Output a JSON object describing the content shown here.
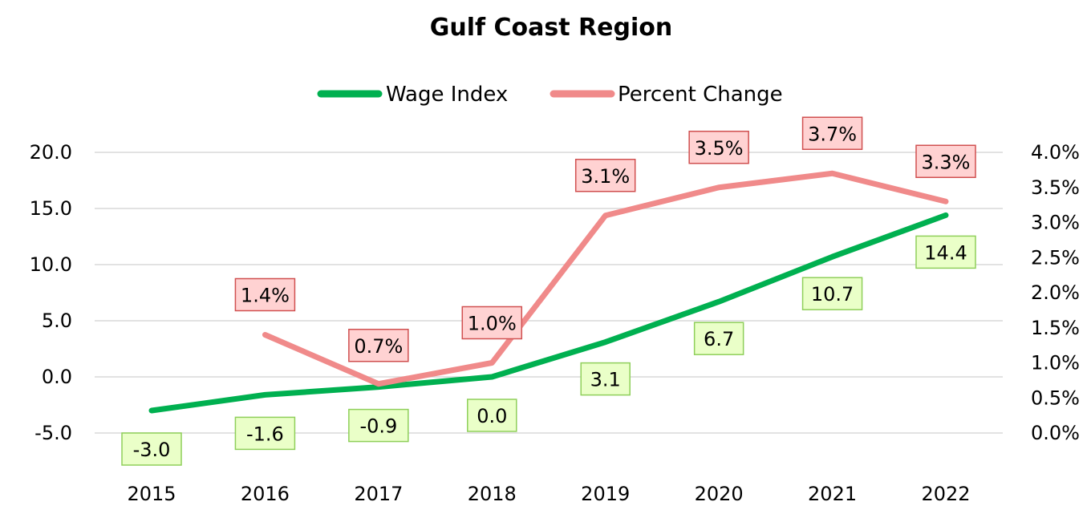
{
  "chart_data": {
    "type": "line",
    "title": "Gulf Coast Region",
    "categories": [
      "2015",
      "2016",
      "2017",
      "2018",
      "2019",
      "2020",
      "2021",
      "2022"
    ],
    "y_left": {
      "ylim": [
        -5,
        20
      ],
      "ticks": [
        -5,
        0,
        5,
        10,
        15,
        20
      ],
      "tick_labels": [
        "-5.0",
        "0.0",
        "5.0",
        "10.0",
        "15.0",
        "20.0"
      ]
    },
    "y_right": {
      "ylim": [
        0,
        4.0
      ],
      "ticks": [
        0,
        0.5,
        1.0,
        1.5,
        2.0,
        2.5,
        3.0,
        3.5,
        4.0
      ],
      "tick_labels": [
        "0.0%",
        "0.5%",
        "1.0%",
        "1.5%",
        "2.0%",
        "2.5%",
        "3.0%",
        "3.5%",
        "4.0%"
      ]
    },
    "series": [
      {
        "name": "Wage Index",
        "axis": "left",
        "color": "#00b050",
        "label_fill": "#eaffc8",
        "label_stroke": "#8fcf5a",
        "values": [
          -3.0,
          -1.6,
          -0.9,
          0.0,
          3.1,
          6.7,
          10.7,
          14.4
        ],
        "labels": [
          "-3.0",
          "-1.6",
          "-0.9",
          "0.0",
          "3.1",
          "6.7",
          "10.7",
          "14.4"
        ]
      },
      {
        "name": "Percent Change",
        "axis": "right",
        "color": "#f08a8a",
        "label_fill": "#ffd2d2",
        "label_stroke": "#d05050",
        "values": [
          null,
          1.4,
          0.7,
          1.0,
          3.1,
          3.5,
          3.7,
          3.3
        ],
        "labels": [
          "",
          "1.4%",
          "0.7%",
          "1.0%",
          "3.1%",
          "3.5%",
          "3.7%",
          "3.3%"
        ]
      }
    ],
    "legend": "top-center",
    "grid": true
  }
}
